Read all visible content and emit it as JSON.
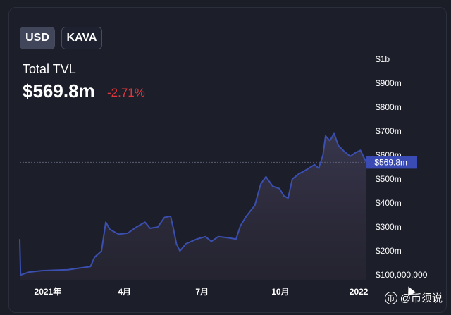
{
  "toggles": {
    "usd": "USD",
    "kava": "KAVA"
  },
  "metric": {
    "label": "Total TVL",
    "value": "$569.8m",
    "change": "-2.71%"
  },
  "colors": {
    "line": "#3b4fb0",
    "negative": "#e1363b",
    "price_tag_bg": "#3a4cb4",
    "background": "#1c1e29"
  },
  "watermark": {
    "icon": "币",
    "text": "@币须说"
  },
  "chart_data": {
    "type": "area",
    "title": "Total TVL",
    "ylabel": "",
    "xlabel": "",
    "y_scale": "linear",
    "ylim": [
      80000000,
      1000000000
    ],
    "y_ticks": [
      {
        "value": 100000000,
        "label": "$100,000,000"
      },
      {
        "value": 200000000,
        "label": "$200m"
      },
      {
        "value": 300000000,
        "label": "$300m"
      },
      {
        "value": 400000000,
        "label": "$400m"
      },
      {
        "value": 500000000,
        "label": "$500m"
      },
      {
        "value": 600000000,
        "label": "$600m"
      },
      {
        "value": 700000000,
        "label": "$700m"
      },
      {
        "value": 800000000,
        "label": "$800m"
      },
      {
        "value": 900000000,
        "label": "$900m"
      },
      {
        "value": 1000000000,
        "label": "$1b"
      }
    ],
    "x_range": [
      "2020-11-29",
      "2022-01-10"
    ],
    "x_ticks": [
      {
        "date": "2021-01-01",
        "label": "2021年"
      },
      {
        "date": "2021-04-01",
        "label": "4月"
      },
      {
        "date": "2021-07-01",
        "label": "7月"
      },
      {
        "date": "2021-10-01",
        "label": "10月"
      },
      {
        "date": "2022-01-01",
        "label": "2022"
      }
    ],
    "current": {
      "value": 569800000,
      "label": "$569.8m"
    },
    "grid": false,
    "series": [
      {
        "values": [
          [
            "2020-11-29",
            250000000
          ],
          [
            "2020-11-30",
            100000000
          ],
          [
            "2020-12-10",
            112000000
          ],
          [
            "2020-12-25",
            118000000
          ],
          [
            "2021-01-10",
            120000000
          ],
          [
            "2021-01-25",
            122000000
          ],
          [
            "2021-02-05",
            128000000
          ],
          [
            "2021-02-20",
            135000000
          ],
          [
            "2021-02-25",
            175000000
          ],
          [
            "2021-03-05",
            200000000
          ],
          [
            "2021-03-10",
            320000000
          ],
          [
            "2021-03-15",
            290000000
          ],
          [
            "2021-03-25",
            270000000
          ],
          [
            "2021-04-05",
            275000000
          ],
          [
            "2021-04-15",
            300000000
          ],
          [
            "2021-04-25",
            320000000
          ],
          [
            "2021-05-01",
            295000000
          ],
          [
            "2021-05-10",
            300000000
          ],
          [
            "2021-05-18",
            340000000
          ],
          [
            "2021-05-25",
            345000000
          ],
          [
            "2021-05-28",
            300000000
          ],
          [
            "2021-06-01",
            230000000
          ],
          [
            "2021-06-05",
            200000000
          ],
          [
            "2021-06-12",
            230000000
          ],
          [
            "2021-06-25",
            250000000
          ],
          [
            "2021-07-05",
            260000000
          ],
          [
            "2021-07-12",
            240000000
          ],
          [
            "2021-07-20",
            260000000
          ],
          [
            "2021-08-01",
            255000000
          ],
          [
            "2021-08-10",
            250000000
          ],
          [
            "2021-08-15",
            305000000
          ],
          [
            "2021-08-22",
            345000000
          ],
          [
            "2021-09-01",
            390000000
          ],
          [
            "2021-09-08",
            480000000
          ],
          [
            "2021-09-14",
            510000000
          ],
          [
            "2021-09-22",
            470000000
          ],
          [
            "2021-09-30",
            460000000
          ],
          [
            "2021-10-05",
            430000000
          ],
          [
            "2021-10-10",
            420000000
          ],
          [
            "2021-10-15",
            500000000
          ],
          [
            "2021-10-22",
            520000000
          ],
          [
            "2021-11-01",
            540000000
          ],
          [
            "2021-11-10",
            560000000
          ],
          [
            "2021-11-15",
            545000000
          ],
          [
            "2021-11-20",
            600000000
          ],
          [
            "2021-11-23",
            680000000
          ],
          [
            "2021-11-28",
            660000000
          ],
          [
            "2021-12-03",
            690000000
          ],
          [
            "2021-12-08",
            640000000
          ],
          [
            "2021-12-15",
            615000000
          ],
          [
            "2021-12-22",
            595000000
          ],
          [
            "2021-12-28",
            610000000
          ],
          [
            "2022-01-03",
            620000000
          ],
          [
            "2022-01-07",
            590000000
          ],
          [
            "2022-01-10",
            569800000
          ]
        ]
      }
    ]
  }
}
